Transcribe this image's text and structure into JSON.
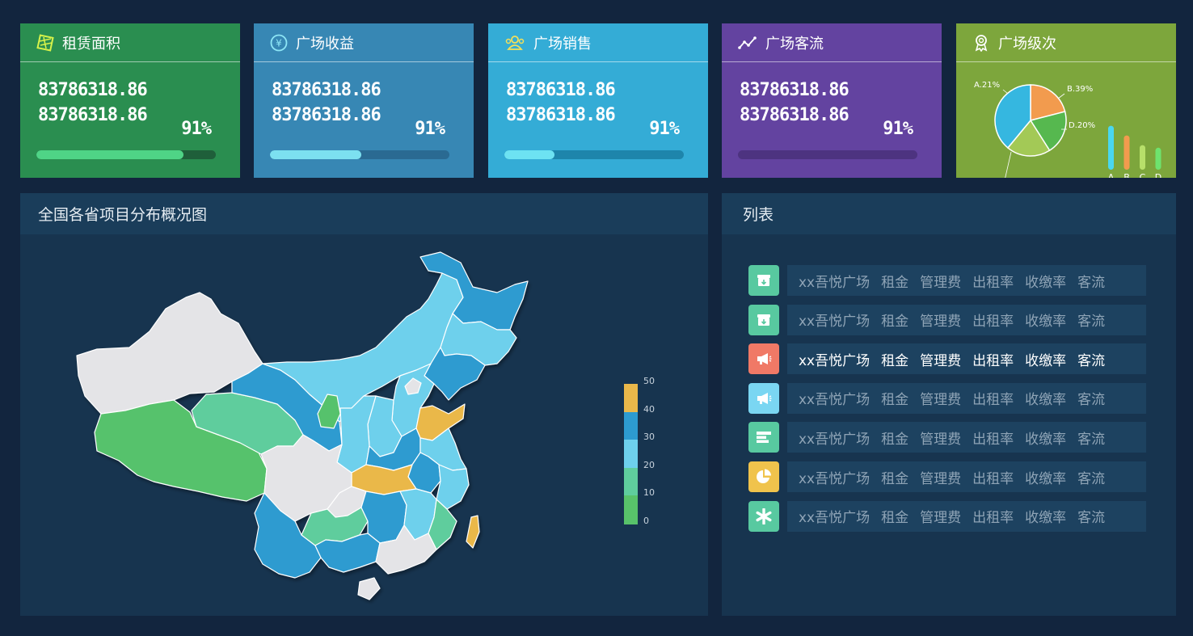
{
  "cards": [
    {
      "title": "租赁面积",
      "icon": "bricks-icon",
      "value1": "83786318.86",
      "value2": "83786318.86",
      "percent": "91%",
      "progress": 0.82,
      "bg": "#2a8e50",
      "track": "#1f5f3a",
      "fill": "#4fd486"
    },
    {
      "title": "广场收益",
      "icon": "yen-coin-icon",
      "value1": "83786318.86",
      "value2": "83786318.86",
      "percent": "91%",
      "progress": 0.51,
      "bg": "#3787b4",
      "track": "#2a6a92",
      "fill": "#7ce0f0"
    },
    {
      "title": "广场销售",
      "icon": "users-icon",
      "value1": "83786318.86",
      "value2": "83786318.86",
      "percent": "91%",
      "progress": 0.28,
      "bg": "#34acd6",
      "track": "#1e85ab",
      "fill": "#6de2f2"
    },
    {
      "title": "广场客流",
      "icon": "trend-line-icon",
      "value1": "83786318.86",
      "value2": "83786318.86",
      "percent": "91%",
      "progress": 0.0,
      "bg": "#6343a0",
      "track": "#4d3380",
      "fill": "#8a6ad0"
    },
    {
      "title": "广场级次",
      "icon": "award-medal-icon",
      "bg": "#7da63c"
    }
  ],
  "pie": {
    "slices": [
      {
        "label": "A.21%",
        "value": 21,
        "color": "#f29b4e"
      },
      {
        "label": "B.39%",
        "value": 39,
        "color": "#35b7e0"
      },
      {
        "label": "C.20%",
        "value": 20,
        "color": "#a3c956"
      },
      {
        "label": "D.20%",
        "value": 20,
        "color": "#56b84f"
      }
    ],
    "bars": [
      {
        "label": "A",
        "value": 68,
        "color": "#4ad7f0"
      },
      {
        "label": "B",
        "value": 53,
        "color": "#f29b4e"
      },
      {
        "label": "C",
        "value": 38,
        "color": "#b7df6a"
      },
      {
        "label": "D",
        "value": 34,
        "color": "#6ee36e"
      }
    ]
  },
  "map_panel": {
    "title": "全国各省项目分布概况图",
    "legend": {
      "ticks": [
        "50",
        "40",
        "30",
        "20",
        "10",
        "0"
      ],
      "colors": [
        "#eab84a",
        "#2d9bd0",
        "#6ed0ec",
        "#5fcd9d",
        "#58c26a"
      ]
    }
  },
  "list_panel": {
    "title": "列表",
    "rows": [
      {
        "icon": "archive-box-icon",
        "icon_bg": "#58c9a0",
        "active": false
      },
      {
        "icon": "archive-box-icon",
        "icon_bg": "#58c9a0",
        "active": false
      },
      {
        "icon": "megaphone-icon",
        "icon_bg": "#f07966",
        "active": true
      },
      {
        "icon": "megaphone-icon",
        "icon_bg": "#7ad6f2",
        "active": false
      },
      {
        "icon": "bar-list-icon",
        "icon_bg": "#58c9a0",
        "active": false
      },
      {
        "icon": "pie-chart-icon",
        "icon_bg": "#f0c34c",
        "active": false
      },
      {
        "icon": "asterisk-icon",
        "icon_bg": "#58c9a0",
        "active": false
      }
    ],
    "cells": [
      "xx吾悦广场",
      "租金",
      "管理费",
      "出租率",
      "收缴率",
      "客流"
    ]
  }
}
